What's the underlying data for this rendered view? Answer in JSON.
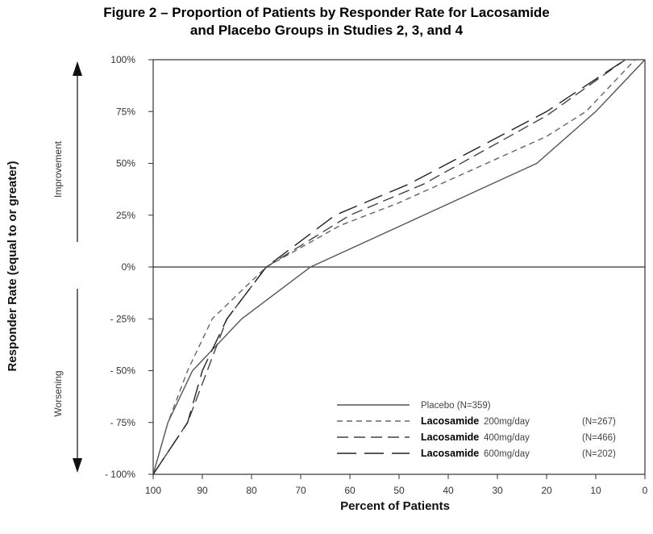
{
  "title_line1": "Figure 2 – Proportion of Patients by Responder Rate for Lacosamide",
  "title_line2": "and Placebo Groups in Studies 2, 3, and 4",
  "chart_data": {
    "type": "line",
    "xlabel": "Percent of Patients",
    "ylabel": "Responder Rate (equal to or greater)",
    "xlim": [
      100,
      0
    ],
    "ylim": [
      -100,
      100
    ],
    "x_reversed": true,
    "xticks": [
      "100",
      "90",
      "80",
      "70",
      "60",
      "50",
      "40",
      "30",
      "20",
      "10",
      "0"
    ],
    "yticks": [
      "100%",
      "75%",
      "50%",
      "25%",
      "0%",
      "- 25%",
      "- 50%",
      "- 75%",
      "- 100%"
    ],
    "annotations": {
      "improvement": "Improvement",
      "worsening": "Worsening"
    },
    "legend_position": "bottom-right",
    "series": [
      {
        "name": "Placebo (N=359)",
        "label_bold": "",
        "dose": "Placebo (N=359)",
        "n": "",
        "style": "solid",
        "color": "#555555",
        "points": [
          [
            100,
            -100
          ],
          [
            97,
            -75
          ],
          [
            92,
            -50
          ],
          [
            82,
            -25
          ],
          [
            68,
            0
          ],
          [
            45,
            25
          ],
          [
            22,
            50
          ],
          [
            10,
            75
          ],
          [
            0,
            100
          ]
        ]
      },
      {
        "name": "Lacosamide 200mg/day (N=267)",
        "label_bold": "Lacosamide",
        "dose": "200mg/day",
        "n": "(N=267)",
        "style": "short-dash",
        "color": "#666666",
        "points": [
          [
            100,
            -100
          ],
          [
            97,
            -75
          ],
          [
            93,
            -50
          ],
          [
            88,
            -25
          ],
          [
            77,
            0
          ],
          [
            62,
            20
          ],
          [
            50,
            31
          ],
          [
            20,
            63
          ],
          [
            12,
            75
          ],
          [
            2,
            100
          ]
        ]
      },
      {
        "name": "Lacosamide 400mg/day (N=466)",
        "label_bold": "Lacosamide",
        "dose": "400mg/day",
        "n": "(N=466)",
        "style": "medium-dash",
        "color": "#444444",
        "points": [
          [
            100,
            -100
          ],
          [
            93,
            -75
          ],
          [
            89,
            -50
          ],
          [
            85,
            -25
          ],
          [
            77,
            0
          ],
          [
            60,
            25
          ],
          [
            45,
            40
          ],
          [
            20,
            73
          ],
          [
            4,
            100
          ]
        ]
      },
      {
        "name": "Lacosamide 600mg/day (N=202)",
        "label_bold": "Lacosamide",
        "dose": "600mg/day",
        "n": "(N=202)",
        "style": "long-dash",
        "color": "#222222",
        "points": [
          [
            100,
            -100
          ],
          [
            93,
            -75
          ],
          [
            90,
            -50
          ],
          [
            85,
            -25
          ],
          [
            77,
            0
          ],
          [
            63,
            25
          ],
          [
            48,
            40
          ],
          [
            20,
            75
          ],
          [
            4,
            100
          ]
        ]
      }
    ]
  }
}
